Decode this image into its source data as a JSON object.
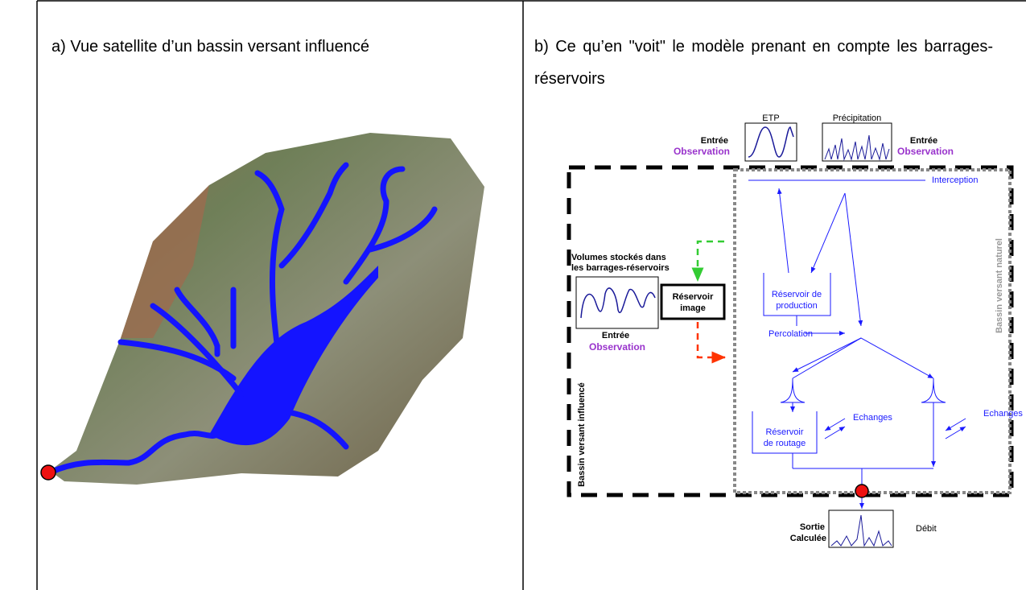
{
  "panel_a": {
    "title": "a) Vue satellite d’un bassin versant influencé"
  },
  "panel_b": {
    "title": "b) Ce qu’en \"voit\" le modèle prenant en compte les barrages-réservoirs",
    "diagram": {
      "etp": "ETP",
      "precipitation": "Précipitation",
      "input_left": [
        "Entrée",
        "Observation"
      ],
      "input_right": [
        "Entrée",
        "Observation"
      ],
      "interception": "Interception",
      "natural_basin": "Bassin versant naturel",
      "stored_volumes": [
        "Volumes stockés dans",
        "les barrages-réservoirs"
      ],
      "stored_input": [
        "Entrée",
        "Observation"
      ],
      "image_reservoir": [
        "Réservoir",
        "image"
      ],
      "production_reservoir": [
        "Réservoir de",
        "production"
      ],
      "percolation": "Percolation",
      "exchanges_left": "Echanges",
      "exchanges_right": "Echanges",
      "routing_reservoir": [
        "Réservoir",
        "de routage"
      ],
      "influenced_basin": "Bassin versant influencé",
      "output": [
        "Sortie",
        "Calculée"
      ],
      "discharge": "Débit"
    }
  }
}
